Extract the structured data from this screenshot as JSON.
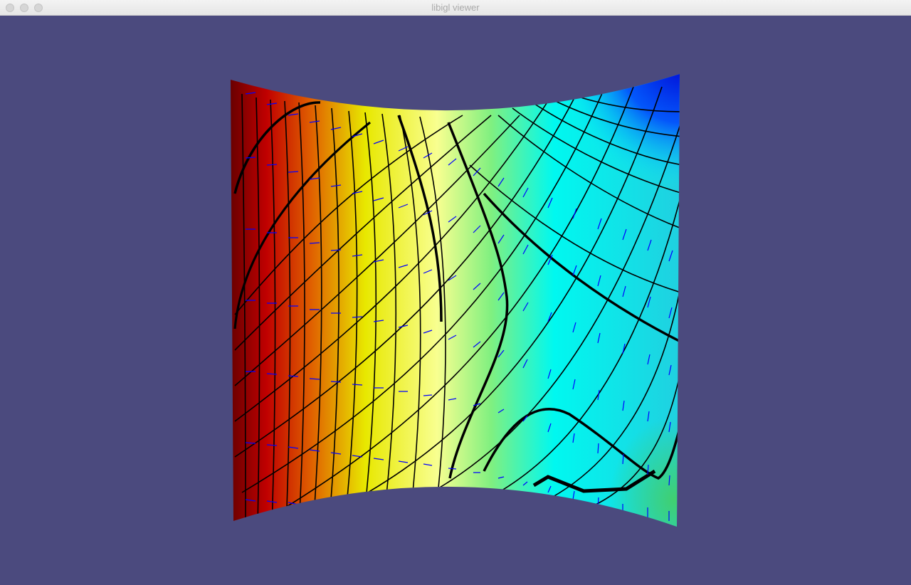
{
  "window": {
    "title": "libigl viewer"
  },
  "viewport": {
    "background_color": "#4b4a7e",
    "colormap": [
      "#6a0000",
      "#c00000",
      "#e06000",
      "#e8e800",
      "#f8ff90",
      "#80f080",
      "#00f8f0",
      "#0000d0"
    ],
    "wire_color": "#000000",
    "vector_field_color": "#0000ff"
  }
}
